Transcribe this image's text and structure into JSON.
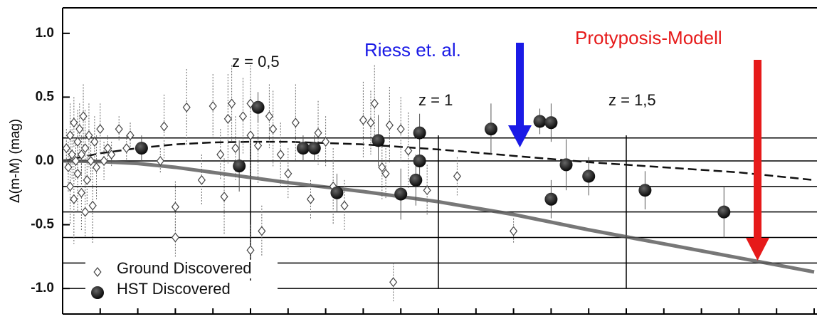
{
  "chart_data": {
    "type": "scatter",
    "ylabel": "Δ(m-M) (mag)",
    "xlim": [
      0,
      2
    ],
    "ylim": [
      -1.2,
      1.2
    ],
    "yticks": [
      {
        "value": 1,
        "label": "1.0"
      },
      {
        "value": 0.5,
        "label": "0.5"
      },
      {
        "value": 0,
        "label": "0.0"
      },
      {
        "value": -0.5,
        "label": "-0.5"
      },
      {
        "value": -1,
        "label": "-1.0"
      }
    ],
    "xticks": [
      0,
      0.1,
      0.2,
      0.3,
      0.4,
      0.5,
      0.6,
      0.7,
      0.8,
      0.9,
      1,
      1.1,
      1.2,
      1.3,
      1.4,
      1.5,
      1.6,
      1.7,
      1.8,
      1.9,
      2
    ],
    "hlines": [
      0.18,
      0,
      -0.2,
      -0.4,
      -0.6,
      -0.8,
      -1.0
    ],
    "vlines": [
      0.5,
      1,
      1.5
    ],
    "annotations": [
      "z = 0,5",
      "z = 1",
      "z = 1,5",
      "Riess et. al.",
      "Protyposis-Modell"
    ],
    "series": [
      {
        "name": "Ground Discovered",
        "marker": "diamond",
        "color": "#444",
        "x": [
          0.01,
          0.015,
          0.02,
          0.02,
          0.025,
          0.03,
          0.03,
          0.035,
          0.04,
          0.04,
          0.045,
          0.05,
          0.05,
          0.055,
          0.06,
          0.06,
          0.065,
          0.07,
          0.075,
          0.08,
          0.085,
          0.09,
          0.1,
          0.11,
          0.12,
          0.13,
          0.15,
          0.17,
          0.18,
          0.26,
          0.27,
          0.3,
          0.3,
          0.33,
          0.37,
          0.4,
          0.42,
          0.43,
          0.44,
          0.45,
          0.46,
          0.48,
          0.5,
          0.5,
          0.5,
          0.52,
          0.53,
          0.55,
          0.56,
          0.58,
          0.6,
          0.62,
          0.66,
          0.68,
          0.7,
          0.72,
          0.75,
          0.8,
          0.82,
          0.83,
          0.85,
          0.86,
          0.87,
          0.9,
          0.88,
          0.92,
          0.97,
          1.05,
          1.2
        ],
        "values": [
          0.1,
          -0.05,
          0.2,
          -0.2,
          0.05,
          0.3,
          -0.3,
          0.0,
          0.15,
          -0.1,
          0.25,
          -0.25,
          0.05,
          0.35,
          -0.4,
          0.1,
          -0.15,
          0.2,
          0.0,
          -0.35,
          0.15,
          -0.05,
          0.25,
          0.0,
          0.1,
          0.05,
          0.25,
          0.1,
          0.2,
          0.0,
          0.27,
          -0.36,
          -0.6,
          0.42,
          -0.15,
          0.43,
          0.05,
          -0.28,
          0.33,
          0.45,
          0.1,
          0.35,
          0.45,
          0.2,
          -0.7,
          0.12,
          -0.55,
          0.35,
          0.25,
          0.05,
          -0.1,
          0.3,
          -0.3,
          0.22,
          0.15,
          -0.2,
          -0.35,
          0.32,
          0.3,
          0.45,
          -0.05,
          -0.1,
          0.28,
          0.25,
          -0.95,
          0.08,
          -0.23,
          -0.12,
          -0.55
        ],
        "errors": [
          0.15,
          0.2,
          0.25,
          0.3,
          0.2,
          0.2,
          0.35,
          0.15,
          0.25,
          0.3,
          0.2,
          0.3,
          0.15,
          0.25,
          0.2,
          0.3,
          0.2,
          0.25,
          0.15,
          0.3,
          0.2,
          0.25,
          0.2,
          0.15,
          0.1,
          0.1,
          0.1,
          0.1,
          0.1,
          0.1,
          0.25,
          0.2,
          0.15,
          0.3,
          0.2,
          0.25,
          0.2,
          0.3,
          0.35,
          0.3,
          0.25,
          0.3,
          0.3,
          0.35,
          0.2,
          0.3,
          0.2,
          0.25,
          0.3,
          0.25,
          0.2,
          0.3,
          0.15,
          0.25,
          0.2,
          0.3,
          0.2,
          0.3,
          0.25,
          0.3,
          0.25,
          0.2,
          0.3,
          0.25,
          0.15,
          0.3,
          0.2,
          0.15,
          0.1
        ]
      },
      {
        "name": "HST Discovered",
        "marker": "circle",
        "color": "#111",
        "x": [
          0.21,
          0.52,
          0.47,
          0.64,
          0.67,
          0.73,
          0.84,
          0.9,
          0.94,
          0.95,
          0.95,
          1.14,
          1.27,
          1.3,
          1.3,
          1.34,
          1.4,
          1.55,
          1.76
        ],
        "values": [
          0.1,
          0.42,
          -0.04,
          0.1,
          0.1,
          -0.25,
          0.16,
          -0.26,
          -0.15,
          0,
          0.22,
          0.25,
          0.31,
          0.3,
          -0.3,
          -0.03,
          -0.12,
          -0.23,
          -0.4
        ],
        "errors": [
          0.1,
          0.12,
          0.2,
          0.1,
          0.1,
          0.15,
          0.2,
          0.2,
          0.2,
          0.2,
          0.15,
          0.2,
          0.1,
          0.15,
          0.15,
          0.2,
          0.15,
          0.15,
          0.2
        ]
      }
    ],
    "lines": [
      {
        "style": "dashed",
        "color": "#111",
        "x": [
          0,
          0.1,
          0.2,
          0.3,
          0.4,
          0.5,
          0.6,
          0.8,
          1,
          1.2,
          1.4,
          1.6,
          1.8,
          2
        ],
        "values": [
          0,
          0.06,
          0.1,
          0.13,
          0.145,
          0.15,
          0.15,
          0.13,
          0.09,
          0.04,
          -0.01,
          -0.05,
          -0.09,
          -0.15
        ]
      },
      {
        "style": "solid",
        "color": "#555",
        "x": [
          0,
          0.1,
          0.2,
          0.3,
          0.4,
          0.5,
          0.6,
          0.8,
          1,
          1.2,
          1.4,
          1.6,
          1.8,
          2
        ],
        "values": [
          0,
          -0.005,
          -0.02,
          -0.05,
          -0.09,
          -0.13,
          -0.17,
          -0.24,
          -0.32,
          -0.42,
          -0.54,
          -0.65,
          -0.76,
          -0.87
        ]
      }
    ]
  }
}
